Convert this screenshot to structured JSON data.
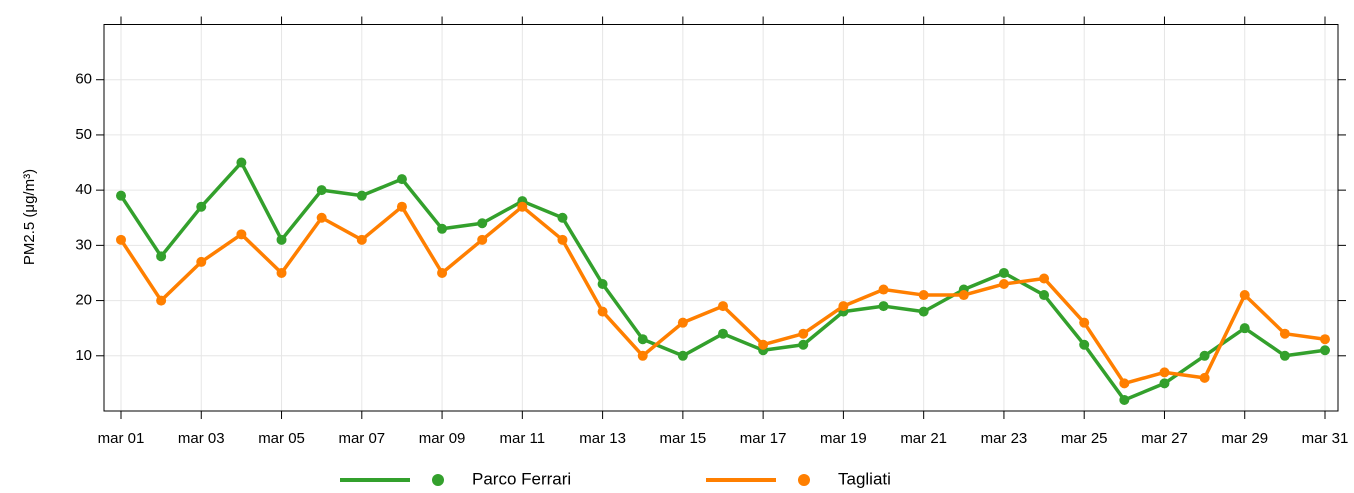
{
  "chart_data": {
    "type": "line",
    "y_label": "PM2.5 (μg/m³)",
    "categories": [
      "mar 01",
      null,
      "mar 03",
      null,
      "mar 05",
      null,
      "mar 07",
      null,
      "mar 09",
      null,
      "mar 11",
      null,
      "mar 13",
      null,
      "mar 15",
      null,
      "mar 17",
      null,
      "mar 19",
      null,
      "mar 21",
      null,
      "mar 23",
      null,
      "mar 25",
      null,
      "mar 27",
      null,
      "mar 29",
      null,
      "mar 31"
    ],
    "series": [
      {
        "name": "Parco Ferrari",
        "color": "#33a02c",
        "values": [
          39,
          28,
          37,
          45,
          31,
          40,
          39,
          42,
          33,
          34,
          38,
          35,
          23,
          13,
          10,
          14,
          11,
          12,
          18,
          19,
          18,
          22,
          25,
          21,
          12,
          2,
          5,
          10,
          15,
          10,
          11
        ]
      },
      {
        "name": "Tagliati",
        "color": "#ff7f00",
        "values": [
          31,
          20,
          27,
          32,
          25,
          35,
          31,
          37,
          25,
          31,
          37,
          31,
          18,
          10,
          16,
          19,
          12,
          14,
          19,
          22,
          21,
          21,
          23,
          24,
          16,
          5,
          7,
          6,
          21,
          14,
          13
        ]
      }
    ],
    "ylim": [
      0,
      70
    ],
    "yticks": [
      10,
      20,
      30,
      40,
      50,
      60
    ],
    "grid": true,
    "legend": "bottom"
  }
}
